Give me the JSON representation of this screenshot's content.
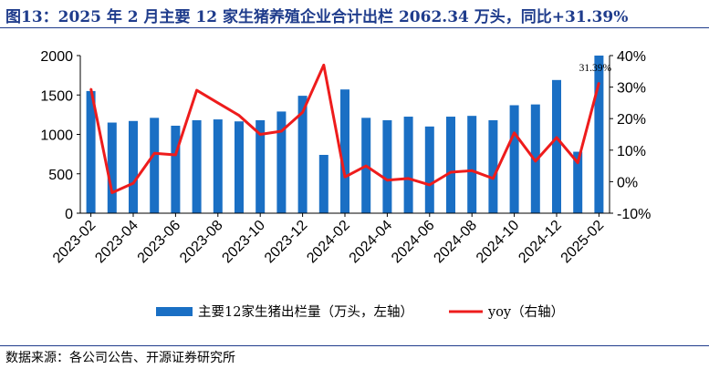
{
  "title": "图13：2025 年 2 月主要 12 家生猪养殖企业合计出栏 2062.34 万头，同比+31.39%",
  "source": "数据来源：各公司公告、开源证券研究所",
  "colors": {
    "bar": "#1a6fc4",
    "line": "#ee1c1c",
    "title": "#1f3c8c"
  },
  "chart_data": {
    "type": "bar+line",
    "categories": [
      "2023-02",
      "2023-03",
      "2023-04",
      "2023-05",
      "2023-06",
      "2023-07",
      "2023-08",
      "2023-09",
      "2023-10",
      "2023-11",
      "2023-12",
      "2024-01",
      "2024-02",
      "2024-03",
      "2024-04",
      "2024-05",
      "2024-06",
      "2024-07",
      "2024-08",
      "2024-09",
      "2024-10",
      "2024-11",
      "2024-12",
      "2025-01",
      "2025-02"
    ],
    "x_tick_labels": [
      "2023-02",
      "2023-04",
      "2023-06",
      "2023-08",
      "2023-10",
      "2023-12",
      "2024-02",
      "2024-04",
      "2024-06",
      "2024-08",
      "2024-10",
      "2024-12",
      "2025-02"
    ],
    "series": [
      {
        "name": "主要12家生猪出栏量（万头，左轴）",
        "type": "bar",
        "axis": "left",
        "values": [
          1550,
          1150,
          1170,
          1210,
          1110,
          1180,
          1190,
          1165,
          1180,
          1290,
          1490,
          740,
          1570,
          1210,
          1180,
          1225,
          1100,
          1225,
          1235,
          1180,
          1370,
          1380,
          1690,
          780,
          2062.34
        ]
      },
      {
        "name": "yoy（右轴）",
        "type": "line",
        "axis": "right",
        "values": [
          29.5,
          -3.5,
          -0.5,
          9,
          8.5,
          29,
          25,
          21,
          15,
          16,
          22,
          37,
          1.5,
          5,
          0.5,
          1,
          -1,
          3,
          3.5,
          1,
          15.5,
          6.5,
          14,
          6,
          31.39
        ]
      }
    ],
    "y_left": {
      "ylim": [
        0,
        2000
      ],
      "ticks": [
        "0",
        "500",
        "1000",
        "1500",
        "2000"
      ]
    },
    "y_right": {
      "ylim": [
        -10,
        40
      ],
      "ticks": [
        "-10%",
        "0%",
        "10%",
        "20%",
        "30%",
        "40%"
      ]
    },
    "annotation": "31.39%",
    "legend_position": "bottom"
  }
}
